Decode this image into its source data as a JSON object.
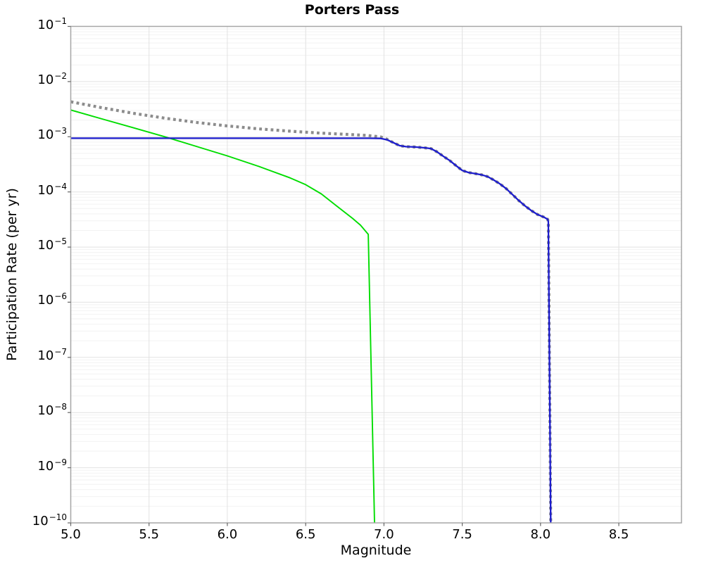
{
  "title": "Porters Pass",
  "chart_data": {
    "type": "line",
    "title": "Porters Pass",
    "xlabel": "Magnitude",
    "ylabel": "Participation Rate (per yr)",
    "xlim": [
      5.0,
      8.9
    ],
    "ylim": [
      1e-10,
      0.1
    ],
    "y_scale": "log",
    "grid": true,
    "legend_position": "none",
    "x_ticks": [
      5.0,
      5.5,
      6.0,
      6.5,
      7.0,
      7.5,
      8.0,
      8.5
    ],
    "x_tick_labels": [
      "5.0",
      "5.5",
      "6.0",
      "6.5",
      "7.0",
      "7.5",
      "8.0",
      "8.5"
    ],
    "y_tick_base": "10",
    "y_tick_exponents": [
      -1,
      -2,
      -3,
      -4,
      -5,
      -6,
      -7,
      -8,
      -9,
      -10
    ],
    "y_tick_labels": [
      "−1",
      "−2",
      "−3",
      "−4",
      "−5",
      "−6",
      "−7",
      "−8",
      "−9",
      "−10"
    ],
    "colors": {
      "blue": "#1c1ccd",
      "green": "#00dd00",
      "gray": "#8c8c8c",
      "grid_major": "#e2e2e2",
      "grid_minor": "#f2f2f2",
      "border": "#a6a6a6"
    },
    "series": [
      {
        "name": "gray-dotted",
        "color": "#8c8c8c",
        "line_style": "dotted",
        "line_width": 4.2,
        "points": [
          [
            5.0,
            0.0043
          ],
          [
            5.2,
            0.00335
          ],
          [
            5.4,
            0.00266
          ],
          [
            5.6,
            0.00217
          ],
          [
            5.8,
            0.00182
          ],
          [
            6.0,
            0.00157
          ],
          [
            6.2,
            0.00139
          ],
          [
            6.4,
            0.00126
          ],
          [
            6.6,
            0.00116
          ],
          [
            6.8,
            0.00109
          ],
          [
            6.9,
            0.00105
          ],
          [
            6.98,
            0.00099
          ],
          [
            7.02,
            0.0009
          ],
          [
            7.06,
            0.00078
          ],
          [
            7.1,
            0.00069
          ],
          [
            7.14,
            0.00066
          ],
          [
            7.2,
            0.00065
          ],
          [
            7.26,
            0.00063
          ],
          [
            7.3,
            0.00061
          ],
          [
            7.34,
            0.00053
          ],
          [
            7.38,
            0.00044
          ],
          [
            7.42,
            0.00037
          ],
          [
            7.46,
            0.0003
          ],
          [
            7.5,
            0.000245
          ],
          [
            7.54,
            0.000225
          ],
          [
            7.58,
            0.000215
          ],
          [
            7.62,
            0.000205
          ],
          [
            7.66,
            0.00019
          ],
          [
            7.7,
            0.000165
          ],
          [
            7.74,
            0.00014
          ],
          [
            7.78,
            0.000115
          ],
          [
            7.82,
            9e-05
          ],
          [
            7.86,
            7e-05
          ],
          [
            7.9,
            5.6e-05
          ],
          [
            7.94,
            4.6e-05
          ],
          [
            7.98,
            3.9e-05
          ],
          [
            8.02,
            3.5e-05
          ],
          [
            8.045,
            3.2e-05
          ],
          [
            8.05,
            2.9e-05
          ],
          [
            8.065,
            1e-10
          ]
        ]
      },
      {
        "name": "green-solid",
        "color": "#00dd00",
        "line_style": "solid",
        "line_width": 1.9,
        "points": [
          [
            5.0,
            0.00305
          ],
          [
            5.2,
            0.0021
          ],
          [
            5.4,
            0.00145
          ],
          [
            5.6,
            0.001
          ],
          [
            5.8,
            0.00067
          ],
          [
            6.0,
            0.00045
          ],
          [
            6.2,
            0.00029
          ],
          [
            6.4,
            0.00018
          ],
          [
            6.5,
            0.000135
          ],
          [
            6.6,
            9.2e-05
          ],
          [
            6.7,
            5.5e-05
          ],
          [
            6.8,
            3.3e-05
          ],
          [
            6.85,
            2.5e-05
          ],
          [
            6.9,
            1.7e-05
          ],
          [
            6.94,
            1e-10
          ]
        ]
      },
      {
        "name": "blue-solid",
        "color": "#1c1ccd",
        "line_style": "solid",
        "line_width": 2.3,
        "points": [
          [
            5.0,
            0.00094
          ],
          [
            6.9,
            0.00094
          ],
          [
            6.98,
            0.00093
          ],
          [
            7.02,
            0.00088
          ],
          [
            7.06,
            0.00078
          ],
          [
            7.1,
            0.00069
          ],
          [
            7.14,
            0.00066
          ],
          [
            7.2,
            0.00065
          ],
          [
            7.26,
            0.00063
          ],
          [
            7.3,
            0.00061
          ],
          [
            7.34,
            0.00053
          ],
          [
            7.38,
            0.00044
          ],
          [
            7.42,
            0.00037
          ],
          [
            7.46,
            0.0003
          ],
          [
            7.5,
            0.000245
          ],
          [
            7.54,
            0.000225
          ],
          [
            7.58,
            0.000215
          ],
          [
            7.62,
            0.000205
          ],
          [
            7.66,
            0.00019
          ],
          [
            7.7,
            0.000165
          ],
          [
            7.74,
            0.00014
          ],
          [
            7.78,
            0.000115
          ],
          [
            7.82,
            9e-05
          ],
          [
            7.86,
            7e-05
          ],
          [
            7.9,
            5.6e-05
          ],
          [
            7.94,
            4.6e-05
          ],
          [
            7.98,
            3.9e-05
          ],
          [
            8.02,
            3.5e-05
          ],
          [
            8.045,
            3.2e-05
          ],
          [
            8.05,
            2.9e-05
          ],
          [
            8.065,
            1e-10
          ]
        ]
      }
    ]
  }
}
